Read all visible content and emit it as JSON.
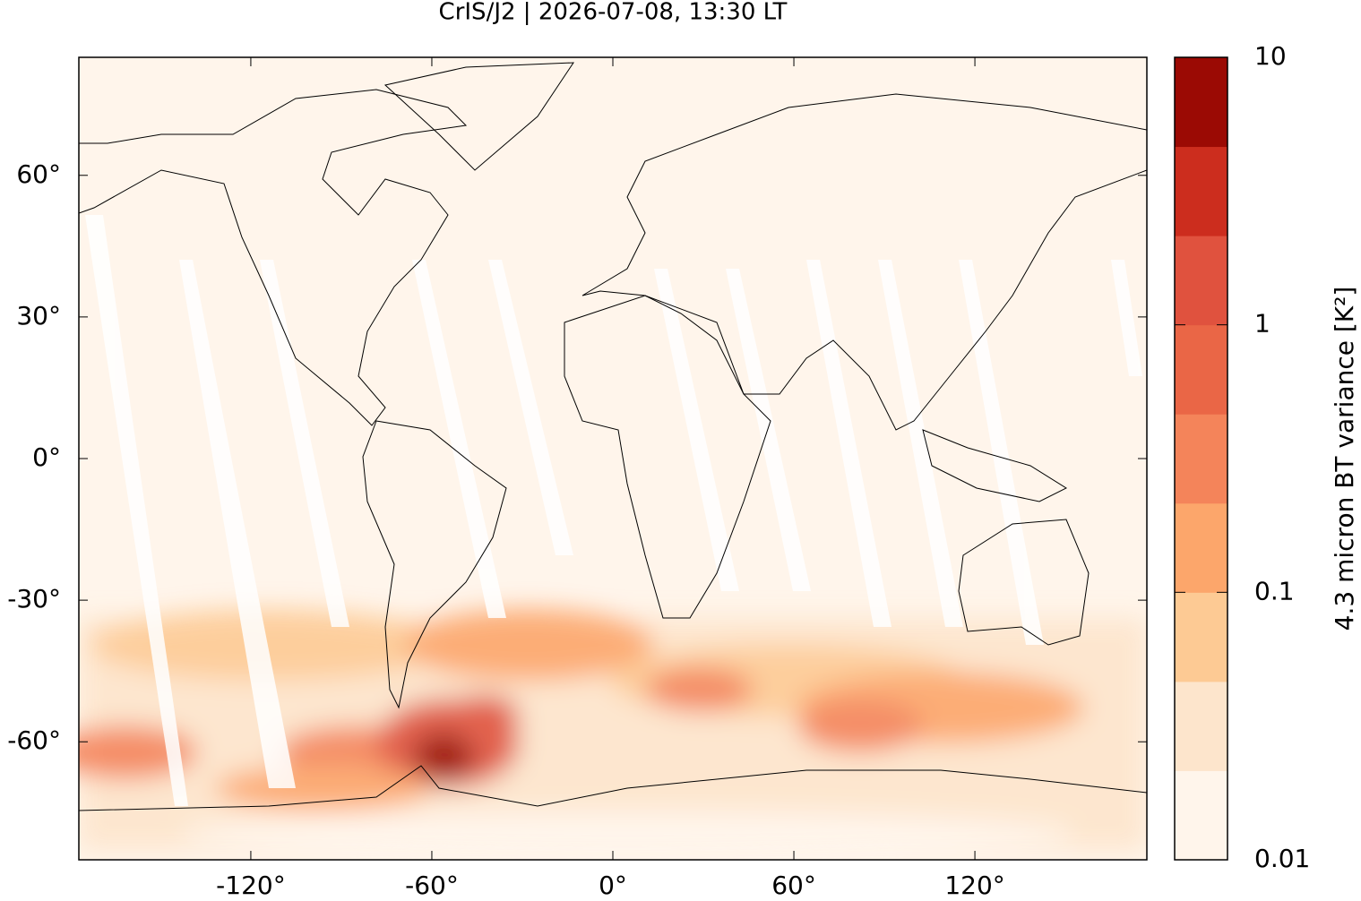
{
  "chart_data": {
    "type": "map",
    "title": "CrIS/J2 | 2026-07-08, 13:30 LT",
    "xlim": [
      -177,
      177
    ],
    "ylim": [
      -85,
      85
    ],
    "xticks": [
      {
        "value": -120,
        "label": "-120°"
      },
      {
        "value": -60,
        "label": "-60°"
      },
      {
        "value": 0,
        "label": "0°"
      },
      {
        "value": 60,
        "label": "60°"
      },
      {
        "value": 120,
        "label": "120°"
      }
    ],
    "yticks": [
      {
        "value": -60,
        "label": "-60°"
      },
      {
        "value": -30,
        "label": "-30°"
      },
      {
        "value": 0,
        "label": "0°"
      },
      {
        "value": 30,
        "label": "30°"
      },
      {
        "value": 60,
        "label": "60°"
      }
    ],
    "colorbar": {
      "label": "4.3 micron BT variance [K²]",
      "log": true,
      "ylim": [
        0.01,
        10
      ],
      "yticks": [
        0.01,
        0.1,
        1,
        10
      ],
      "colors": [
        "#fff5eb",
        "#fde5cc",
        "#fdca94",
        "#fca66b",
        "#f4845a",
        "#ea6646",
        "#e0523e",
        "#cc2d1e",
        "#9b0a04"
      ]
    }
  }
}
